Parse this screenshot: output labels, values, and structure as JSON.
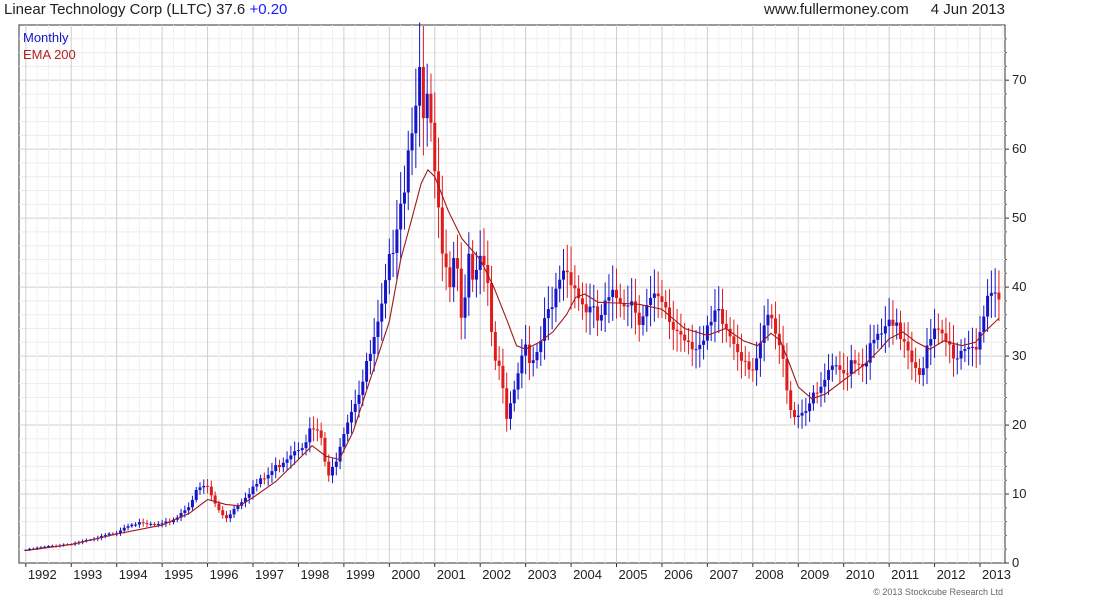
{
  "header": {
    "title": "Linear Technology Corp (LLTC)",
    "last": "37.6",
    "change": "+0.20",
    "site": "www.fullermoney.com",
    "date": "4 Jun 2013"
  },
  "copyright": "© 2013 Stockcube Research Ltd",
  "colors": {
    "up": "#1515c8",
    "down": "#e01b1b",
    "ema": "#a01818",
    "grid": "#d9d9d9"
  },
  "chart_data": {
    "type": "candlestick",
    "interval_label": "Monthly",
    "overlay_label": "EMA 200",
    "y_axis_position": "right",
    "ylim": [
      0,
      78
    ],
    "xlim": [
      1991.85,
      2013.55
    ],
    "y_ticks": [
      0,
      10,
      20,
      30,
      40,
      50,
      60,
      70
    ],
    "x_ticks": [
      "1992",
      "1993",
      "1994",
      "1995",
      "1996",
      "1997",
      "1998",
      "1999",
      "2000",
      "2001",
      "2002",
      "2003",
      "2004",
      "2005",
      "2006",
      "2007",
      "2008",
      "2009",
      "2010",
      "2011",
      "2012",
      "2013"
    ],
    "grid": true,
    "closes": [
      [
        1992.0,
        1.9
      ],
      [
        1992.5,
        2.4
      ],
      [
        1993.0,
        2.8
      ],
      [
        1993.5,
        3.4
      ],
      [
        1994.0,
        4.5
      ],
      [
        1994.3,
        5.8
      ],
      [
        1994.6,
        5.6
      ],
      [
        1995.0,
        5.5
      ],
      [
        1995.3,
        6.5
      ],
      [
        1995.6,
        8.5
      ],
      [
        1995.8,
        10.8
      ],
      [
        1996.0,
        11.0
      ],
      [
        1996.2,
        8.0
      ],
      [
        1996.4,
        6.5
      ],
      [
        1996.6,
        8.0
      ],
      [
        1996.8,
        9.5
      ],
      [
        1997.0,
        11.0
      ],
      [
        1997.3,
        12.5
      ],
      [
        1997.6,
        14.5
      ],
      [
        1997.9,
        16.5
      ],
      [
        1998.1,
        17.5
      ],
      [
        1998.3,
        19.5
      ],
      [
        1998.5,
        18.0
      ],
      [
        1998.65,
        12.0
      ],
      [
        1998.8,
        14.5
      ],
      [
        1999.0,
        19.5
      ],
      [
        1999.2,
        23.0
      ],
      [
        1999.4,
        26.0
      ],
      [
        1999.6,
        30.5
      ],
      [
        1999.8,
        35.0
      ],
      [
        2000.0,
        43.0
      ],
      [
        2000.2,
        52.0
      ],
      [
        2000.35,
        56.0
      ],
      [
        2000.5,
        65.0
      ],
      [
        2000.65,
        72.0
      ],
      [
        2000.75,
        62.0
      ],
      [
        2000.85,
        68.0
      ],
      [
        2001.0,
        55.0
      ],
      [
        2001.15,
        45.0
      ],
      [
        2001.3,
        40.0
      ],
      [
        2001.45,
        48.0
      ],
      [
        2001.6,
        35.0
      ],
      [
        2001.75,
        45.0
      ],
      [
        2001.9,
        40.0
      ],
      [
        2002.0,
        44.0
      ],
      [
        2002.15,
        40.0
      ],
      [
        2002.3,
        30.0
      ],
      [
        2002.45,
        27.0
      ],
      [
        2002.6,
        21.0
      ],
      [
        2002.75,
        26.0
      ],
      [
        2002.9,
        30.0
      ],
      [
        2003.0,
        32.0
      ],
      [
        2003.2,
        28.0
      ],
      [
        2003.4,
        34.0
      ],
      [
        2003.6,
        37.0
      ],
      [
        2003.8,
        43.0
      ],
      [
        2004.0,
        42.0
      ],
      [
        2004.2,
        38.0
      ],
      [
        2004.4,
        36.5
      ],
      [
        2004.6,
        35.0
      ],
      [
        2004.8,
        37.5
      ],
      [
        2005.0,
        38.5
      ],
      [
        2005.3,
        38.5
      ],
      [
        2005.5,
        36.0
      ],
      [
        2005.8,
        38.0
      ],
      [
        2006.0,
        37.0
      ],
      [
        2006.2,
        34.5
      ],
      [
        2006.5,
        33.0
      ],
      [
        2006.7,
        32.0
      ],
      [
        2006.9,
        31.5
      ],
      [
        2007.0,
        33.0
      ],
      [
        2007.2,
        36.0
      ],
      [
        2007.4,
        34.0
      ],
      [
        2007.6,
        32.0
      ],
      [
        2007.8,
        30.0
      ],
      [
        2008.0,
        28.5
      ],
      [
        2008.2,
        31.0
      ],
      [
        2008.3,
        36.0
      ],
      [
        2008.5,
        33.0
      ],
      [
        2008.7,
        28.0
      ],
      [
        2008.85,
        22.0
      ],
      [
        2009.0,
        21.5
      ],
      [
        2009.2,
        23.0
      ],
      [
        2009.4,
        24.0
      ],
      [
        2009.6,
        26.5
      ],
      [
        2009.8,
        28.0
      ],
      [
        2010.0,
        27.5
      ],
      [
        2010.2,
        30.0
      ],
      [
        2010.4,
        29.0
      ],
      [
        2010.6,
        31.0
      ],
      [
        2010.8,
        33.0
      ],
      [
        2011.0,
        34.0
      ],
      [
        2011.2,
        33.5
      ],
      [
        2011.4,
        32.0
      ],
      [
        2011.55,
        29.0
      ],
      [
        2011.7,
        28.0
      ],
      [
        2011.85,
        31.0
      ],
      [
        2012.0,
        33.0
      ],
      [
        2012.2,
        32.5
      ],
      [
        2012.35,
        31.0
      ],
      [
        2012.5,
        30.0
      ],
      [
        2012.7,
        32.0
      ],
      [
        2012.9,
        31.5
      ],
      [
        2013.0,
        34.0
      ],
      [
        2013.15,
        37.0
      ],
      [
        2013.3,
        37.8
      ],
      [
        2013.42,
        37.6
      ]
    ],
    "ema_200": [
      [
        1992.0,
        1.8
      ],
      [
        1993.0,
        2.7
      ],
      [
        1994.0,
        4.2
      ],
      [
        1995.0,
        5.5
      ],
      [
        1995.6,
        7.2
      ],
      [
        1996.0,
        9.2
      ],
      [
        1996.4,
        8.5
      ],
      [
        1996.7,
        8.3
      ],
      [
        1997.0,
        9.5
      ],
      [
        1997.5,
        11.8
      ],
      [
        1998.0,
        15.0
      ],
      [
        1998.3,
        17.0
      ],
      [
        1998.6,
        15.5
      ],
      [
        1998.9,
        15.0
      ],
      [
        1999.2,
        19.0
      ],
      [
        1999.6,
        27.0
      ],
      [
        2000.0,
        35.0
      ],
      [
        2000.25,
        44.0
      ],
      [
        2000.5,
        50.0
      ],
      [
        2000.7,
        55.0
      ],
      [
        2000.85,
        57.0
      ],
      [
        2001.0,
        56.0
      ],
      [
        2001.3,
        51.0
      ],
      [
        2001.6,
        47.0
      ],
      [
        2002.0,
        44.0
      ],
      [
        2002.3,
        40.0
      ],
      [
        2002.6,
        35.0
      ],
      [
        2002.8,
        31.5
      ],
      [
        2003.0,
        31.0
      ],
      [
        2003.3,
        32.0
      ],
      [
        2003.6,
        33.5
      ],
      [
        2003.9,
        36.0
      ],
      [
        2004.1,
        38.5
      ],
      [
        2004.3,
        39.0
      ],
      [
        2004.6,
        37.8
      ],
      [
        2005.0,
        37.7
      ],
      [
        2005.5,
        37.5
      ],
      [
        2006.0,
        36.8
      ],
      [
        2006.5,
        34.0
      ],
      [
        2007.0,
        33.0
      ],
      [
        2007.4,
        34.0
      ],
      [
        2007.8,
        32.2
      ],
      [
        2008.1,
        31.5
      ],
      [
        2008.4,
        33.3
      ],
      [
        2008.6,
        32.3
      ],
      [
        2008.8,
        29.0
      ],
      [
        2009.0,
        25.5
      ],
      [
        2009.3,
        23.8
      ],
      [
        2009.6,
        24.5
      ],
      [
        2010.0,
        26.5
      ],
      [
        2010.5,
        29.0
      ],
      [
        2010.8,
        31.0
      ],
      [
        2011.0,
        32.5
      ],
      [
        2011.3,
        33.5
      ],
      [
        2011.6,
        32.0
      ],
      [
        2011.9,
        31.0
      ],
      [
        2012.2,
        32.2
      ],
      [
        2012.6,
        31.5
      ],
      [
        2012.9,
        32.0
      ],
      [
        2013.1,
        33.5
      ],
      [
        2013.42,
        35.5
      ]
    ]
  }
}
